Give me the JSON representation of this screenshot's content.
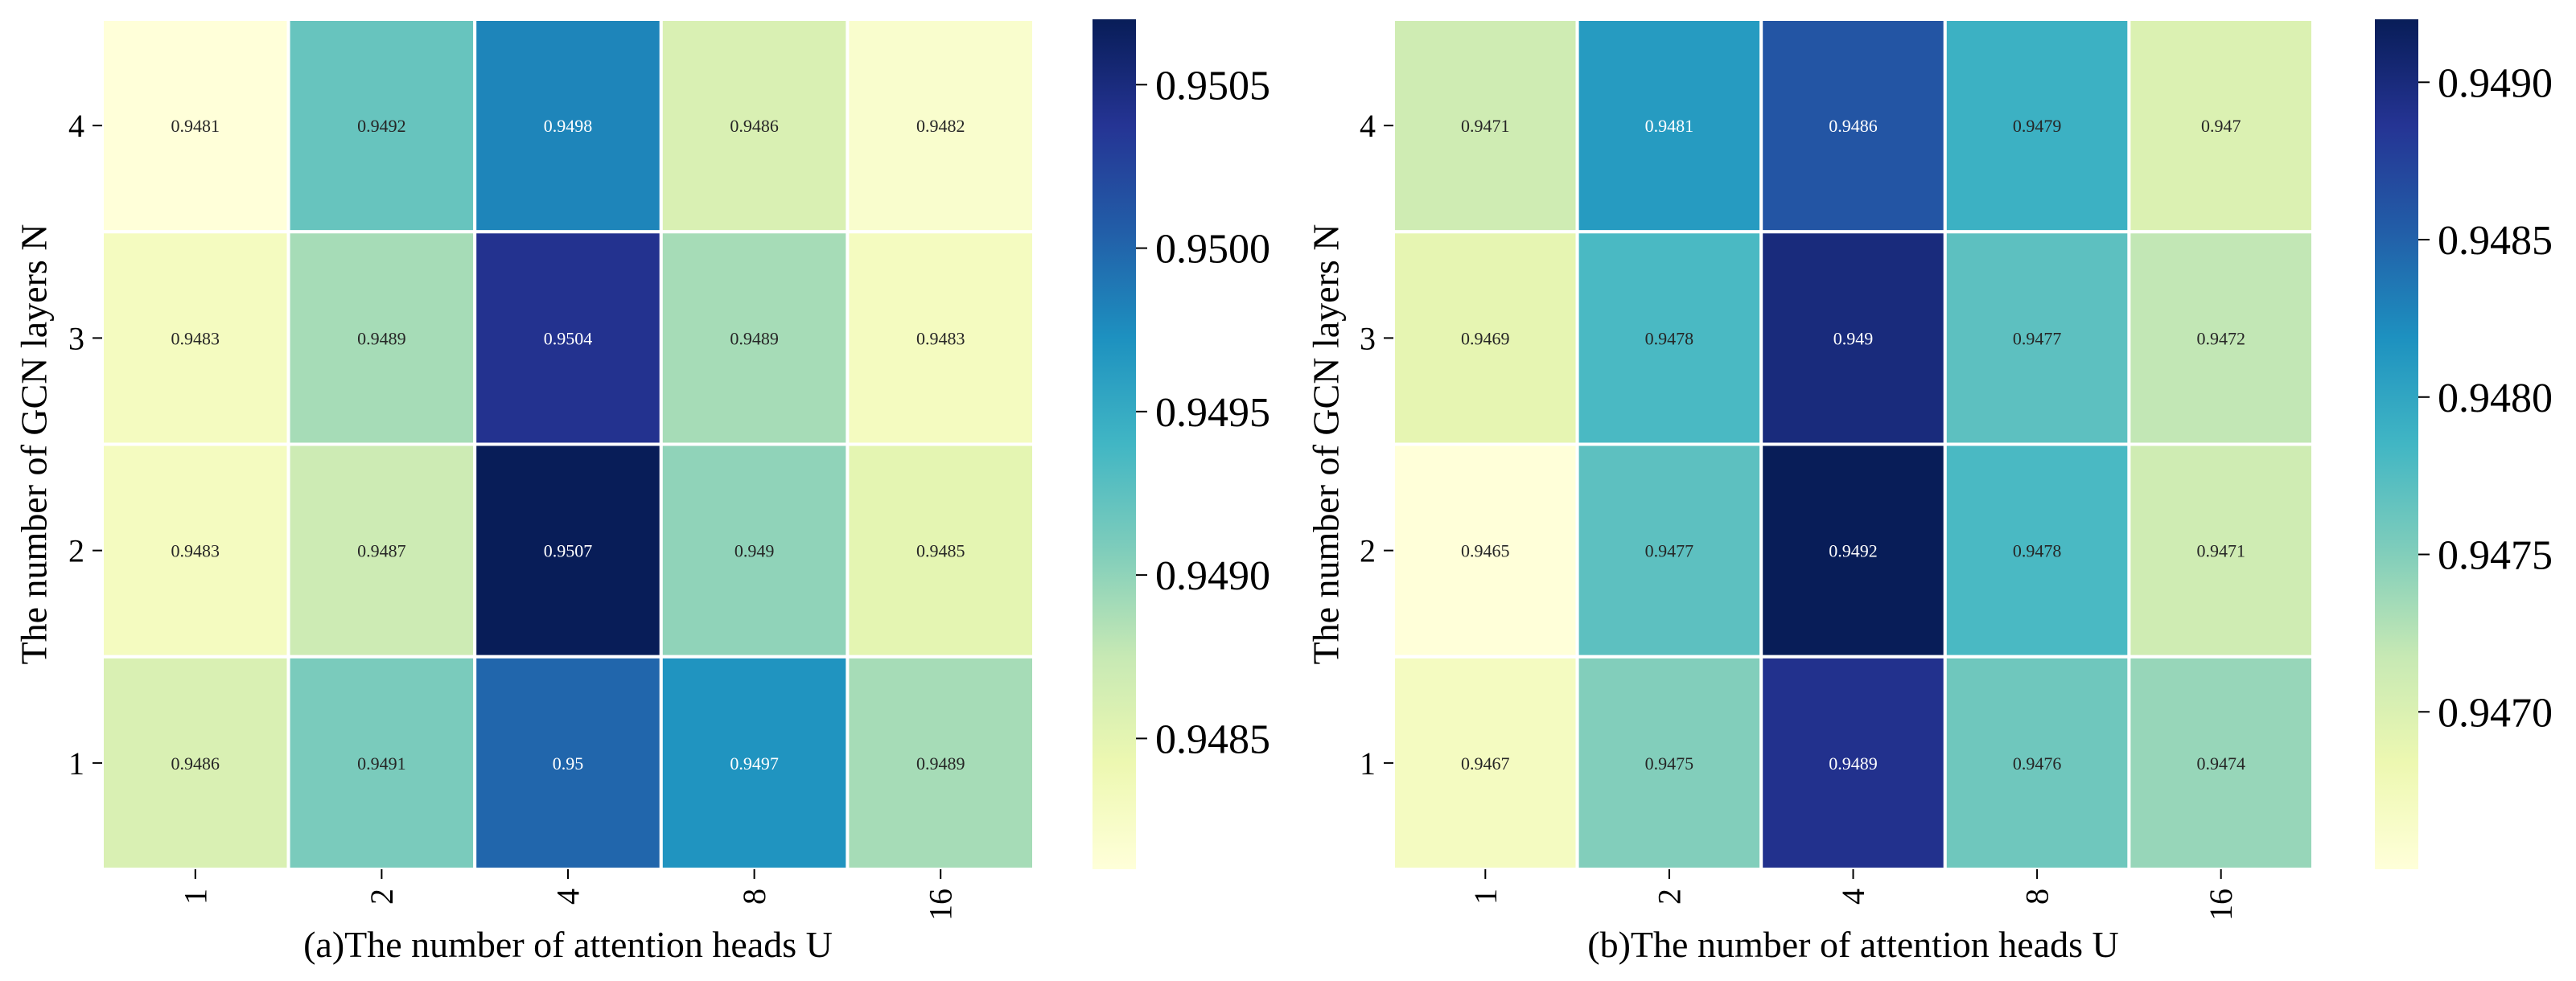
{
  "chart_data": [
    {
      "type": "heatmap",
      "panel": "a",
      "xlabel": "(a)The number of attention heads U",
      "ylabel": "The number of GCN layers N",
      "x_categories": [
        "1",
        "2",
        "4",
        "8",
        "16"
      ],
      "y_categories": [
        "4",
        "3",
        "2",
        "1"
      ],
      "values": [
        [
          0.9481,
          0.9492,
          0.9498,
          0.9486,
          0.9482
        ],
        [
          0.9483,
          0.9489,
          0.9504,
          0.9489,
          0.9483
        ],
        [
          0.9483,
          0.9487,
          0.9507,
          0.949,
          0.9485
        ],
        [
          0.9486,
          0.9491,
          0.95,
          0.9497,
          0.9489
        ]
      ],
      "cell_labels": [
        [
          "0.9481",
          "0.9492",
          "0.9498",
          "0.9486",
          "0.9482"
        ],
        [
          "0.9483",
          "0.9489",
          "0.9504",
          "0.9489",
          "0.9483"
        ],
        [
          "0.9483",
          "0.9487",
          "0.9507",
          "0.949",
          "0.9485"
        ],
        [
          "0.9486",
          "0.9491",
          "0.95",
          "0.9497",
          "0.9489"
        ]
      ],
      "colormap": "YlGnBu",
      "color_range": [
        0.9481,
        0.9507
      ],
      "colorbar_ticks": [
        0.9485,
        0.949,
        0.9495,
        0.95,
        0.9505
      ],
      "colorbar_tick_labels": [
        "0.9485",
        "0.9490",
        "0.9495",
        "0.9500",
        "0.9505"
      ]
    },
    {
      "type": "heatmap",
      "panel": "b",
      "xlabel": "(b)The number of attention heads U",
      "ylabel": "The number of GCN layers N",
      "x_categories": [
        "1",
        "2",
        "4",
        "8",
        "16"
      ],
      "y_categories": [
        "4",
        "3",
        "2",
        "1"
      ],
      "values": [
        [
          0.9471,
          0.9481,
          0.9486,
          0.9479,
          0.947
        ],
        [
          0.9469,
          0.9478,
          0.949,
          0.9477,
          0.9472
        ],
        [
          0.9465,
          0.9477,
          0.9492,
          0.9478,
          0.9471
        ],
        [
          0.9467,
          0.9475,
          0.9489,
          0.9476,
          0.9474
        ]
      ],
      "cell_labels": [
        [
          "0.9471",
          "0.9481",
          "0.9486",
          "0.9479",
          "0.947"
        ],
        [
          "0.9469",
          "0.9478",
          "0.949",
          "0.9477",
          "0.9472"
        ],
        [
          "0.9465",
          "0.9477",
          "0.9492",
          "0.9478",
          "0.9471"
        ],
        [
          "0.9467",
          "0.9475",
          "0.9489",
          "0.9476",
          "0.9474"
        ]
      ],
      "colormap": "YlGnBu",
      "color_range": [
        0.9465,
        0.9492
      ],
      "colorbar_ticks": [
        0.947,
        0.9475,
        0.948,
        0.9485,
        0.949
      ],
      "colorbar_tick_labels": [
        "0.9470",
        "0.9475",
        "0.9480",
        "0.9485",
        "0.9490"
      ]
    }
  ]
}
